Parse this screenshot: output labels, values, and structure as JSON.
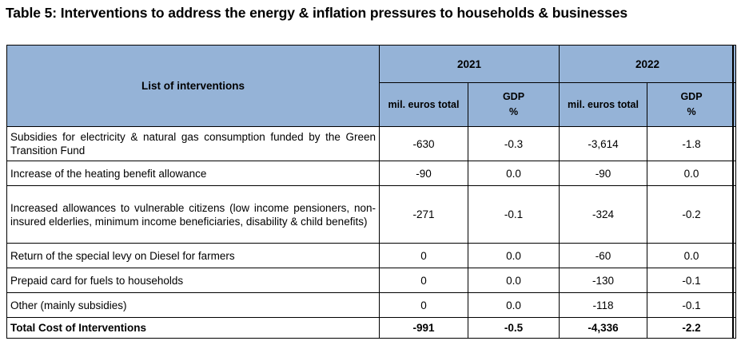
{
  "title": "Table 5: Interventions to address the energy & inflation pressures to households & businesses",
  "header": {
    "list_label": "List of interventions",
    "year_1": "2021",
    "year_2": "2022",
    "mil_label": "mil. euros total",
    "gdp_line1": "GDP",
    "gdp_line2": "%"
  },
  "rows": [
    {
      "label": "Subsidies for electricity & natural gas consumption funded by the Green Transition Fund",
      "v2021": "-630",
      "g2021": "-0.3",
      "v2022": "-3,614",
      "g2022": "-1.8"
    },
    {
      "label": "Increase of the heating benefit allowance",
      "v2021": "-90",
      "g2021": "0.0",
      "v2022": "-90",
      "g2022": "0.0"
    },
    {
      "label": "Increased allowances to vulnerable citizens (low income pensioners, non-insured elderlies, minimum income beneficiaries, disability & child benefits)",
      "v2021": "-271",
      "g2021": "-0.1",
      "v2022": "-324",
      "g2022": "-0.2"
    },
    {
      "label": "Return of the special levy on Diesel for farmers",
      "v2021": "0",
      "g2021": "0.0",
      "v2022": "-60",
      "g2022": "0.0"
    },
    {
      "label": "Prepaid card for fuels to households",
      "v2021": "0",
      "g2021": "0.0",
      "v2022": "-130",
      "g2022": "-0.1"
    },
    {
      "label": "Other (mainly subsidies)",
      "v2021": "0",
      "g2021": "0.0",
      "v2022": "-118",
      "g2022": "-0.1"
    }
  ],
  "total": {
    "label": "Total Cost of Interventions",
    "v2021": "-991",
    "g2021": "-0.5",
    "v2022": "-4,336",
    "g2022": "-2.2"
  },
  "colors": {
    "header_bg": "#95b3d7"
  }
}
